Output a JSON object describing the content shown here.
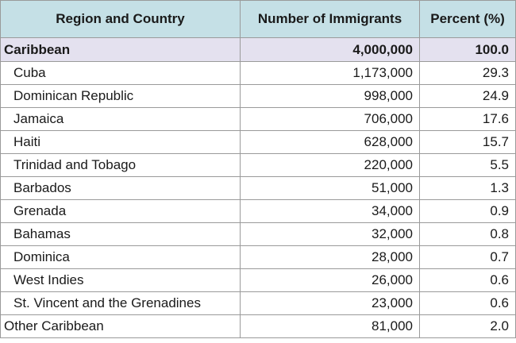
{
  "table": {
    "headers": [
      "Region and Country",
      "Number of Immigrants",
      "Percent (%)"
    ],
    "total": {
      "name": "Caribbean",
      "number": "4,000,000",
      "percent": "100.0"
    },
    "rows": [
      {
        "name": "Cuba",
        "number": "1,173,000",
        "percent": "29.3"
      },
      {
        "name": "Dominican Republic",
        "number": "998,000",
        "percent": "24.9"
      },
      {
        "name": "Jamaica",
        "number": "706,000",
        "percent": "17.6"
      },
      {
        "name": "Haiti",
        "number": "628,000",
        "percent": "15.7"
      },
      {
        "name": "Trinidad and Tobago",
        "number": "220,000",
        "percent": "5.5"
      },
      {
        "name": "Barbados",
        "number": "51,000",
        "percent": "1.3"
      },
      {
        "name": "Grenada",
        "number": "34,000",
        "percent": "0.9"
      },
      {
        "name": "Bahamas",
        "number": "32,000",
        "percent": "0.8"
      },
      {
        "name": "Dominica",
        "number": "28,000",
        "percent": "0.7"
      },
      {
        "name": "West Indies",
        "number": "26,000",
        "percent": "0.6"
      },
      {
        "name": "St. Vincent and the Grenadines",
        "number": "23,000",
        "percent": "0.6"
      }
    ],
    "other": {
      "name": "Other Caribbean",
      "number": "81,000",
      "percent": "2.0"
    }
  }
}
